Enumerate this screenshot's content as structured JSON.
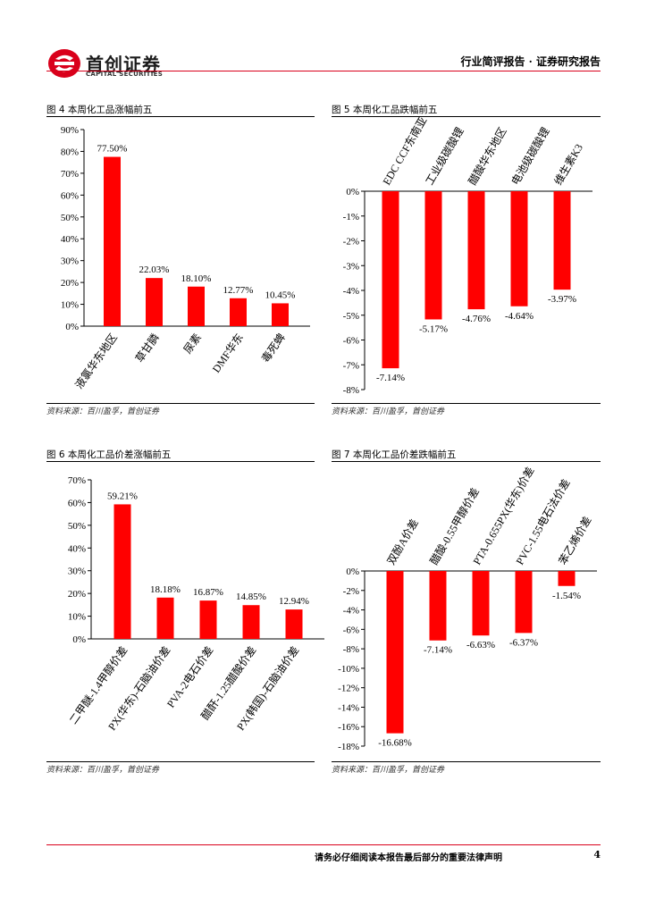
{
  "header": {
    "brand_cn": "首创证券",
    "brand_en": "CAPITAL SECURITIES",
    "report_type": "行业简评报告 · 证券研究报告",
    "brand_color": "#d9001b"
  },
  "figures": {
    "fig4": {
      "title": "图 4 本周化工品涨幅前五",
      "source": "资料来源：百川盈孚，首创证券"
    },
    "fig5": {
      "title": "图 5 本周化工品跌幅前五",
      "source": "资料来源：百川盈孚，首创证券"
    },
    "fig6": {
      "title": "图 6 本周化工品价差涨幅前五",
      "source": "资料来源：百川盈孚，首创证券"
    },
    "fig7": {
      "title": "图 7 本周化工品价差跌幅前五",
      "source": "资料来源：百川盈孚，首创证券"
    }
  },
  "chart_data": [
    {
      "id": "fig4",
      "type": "bar",
      "title": "图 4 本周化工品涨幅前五",
      "categories": [
        "液氯华东地区",
        "草甘膦",
        "尿素",
        "DMF华东",
        "毒死蜱"
      ],
      "values": [
        77.5,
        22.03,
        18.1,
        12.77,
        10.45
      ],
      "labels": [
        "77.50%",
        "22.03%",
        "18.10%",
        "12.77%",
        "10.45%"
      ],
      "ylim": [
        0,
        90
      ],
      "ytick_step": 10,
      "yticks": [
        "0%",
        "10%",
        "20%",
        "30%",
        "40%",
        "50%",
        "60%",
        "70%",
        "80%",
        "90%"
      ],
      "bar_color": "#ff0000"
    },
    {
      "id": "fig5",
      "type": "bar",
      "title": "图 5 本周化工品跌幅前五",
      "categories": [
        "EDC CCF东南亚",
        "工业级碳酸锂",
        "醋酸华东地区",
        "电池级碳酸锂",
        "维生素K3"
      ],
      "values": [
        -7.14,
        -5.17,
        -4.76,
        -4.64,
        -3.97
      ],
      "labels": [
        "-7.14%",
        "-5.17%",
        "-4.76%",
        "-4.64%",
        "-3.97%"
      ],
      "ylim": [
        -8,
        0
      ],
      "ytick_step": 1,
      "yticks": [
        "0%",
        "-1%",
        "-2%",
        "-3%",
        "-4%",
        "-5%",
        "-6%",
        "-7%",
        "-8%"
      ],
      "bar_color": "#ff0000"
    },
    {
      "id": "fig6",
      "type": "bar",
      "title": "图 6 本周化工品价差涨幅前五",
      "categories": [
        "二甲醚-1.4甲醇价差",
        "PX(华东)-石脑油价差",
        "PVA-2电石价差",
        "醋酐-1.25醋酸价差",
        "PX(韩国)-石脑油价差"
      ],
      "values": [
        59.21,
        18.18,
        16.87,
        14.85,
        12.94
      ],
      "labels": [
        "59.21%",
        "18.18%",
        "16.87%",
        "14.85%",
        "12.94%"
      ],
      "ylim": [
        0,
        70
      ],
      "ytick_step": 10,
      "yticks": [
        "0%",
        "10%",
        "20%",
        "30%",
        "40%",
        "50%",
        "60%",
        "70%"
      ],
      "bar_color": "#ff0000"
    },
    {
      "id": "fig7",
      "type": "bar",
      "title": "图 7 本周化工品价差跌幅前五",
      "categories": [
        "双酚A价差",
        "醋酸-0.55甲醇价差",
        "PTA-0.655PX(华东)价差",
        "PVC-1.55电石法价差",
        "苯乙烯价差"
      ],
      "values": [
        -16.68,
        -7.14,
        -6.63,
        -6.37,
        -1.54
      ],
      "labels": [
        "-16.68%",
        "-7.14%",
        "-6.63%",
        "-6.37%",
        "-1.54%"
      ],
      "ylim": [
        -18,
        0
      ],
      "ytick_step": 2,
      "yticks": [
        "0%",
        "-2%",
        "-4%",
        "-6%",
        "-8%",
        "-10%",
        "-12%",
        "-14%",
        "-16%",
        "-18%"
      ],
      "bar_color": "#ff0000"
    }
  ],
  "footer": {
    "disclaimer": "请务必仔细阅读本报告最后部分的重要法律声明",
    "page_number": "4"
  }
}
